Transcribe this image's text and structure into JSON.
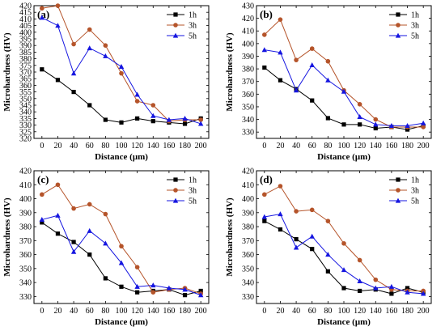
{
  "colors": {
    "1h": "#000000",
    "3h": "#b5542a",
    "5h": "#1616e0"
  },
  "chart_data": [
    {
      "type": "line",
      "panel_label": "(a)",
      "xlabel": "Distance (μm)",
      "ylabel": "Microhardness (HV)",
      "x": [
        0,
        20,
        40,
        60,
        80,
        100,
        120,
        140,
        160,
        180,
        200
      ],
      "xticks": [
        0,
        20,
        40,
        60,
        80,
        100,
        120,
        140,
        160,
        180,
        200
      ],
      "xlim": [
        -10,
        210
      ],
      "ylim": [
        320,
        420
      ],
      "yticks": [
        320,
        325,
        330,
        335,
        340,
        345,
        350,
        355,
        360,
        365,
        370,
        375,
        380,
        385,
        390,
        395,
        400,
        405,
        410,
        415,
        420
      ],
      "legend_position": "top-right",
      "series": [
        {
          "name": "1h",
          "marker": "square",
          "values": [
            372,
            364,
            355,
            345,
            334,
            332,
            335,
            333,
            332,
            331,
            335
          ]
        },
        {
          "name": "3h",
          "marker": "circle",
          "values": [
            418,
            420,
            391,
            402,
            390,
            369,
            348,
            345,
            333,
            334,
            334
          ]
        },
        {
          "name": "5h",
          "marker": "triangle",
          "values": [
            411,
            405,
            369,
            388,
            382,
            374,
            353,
            337,
            334,
            335,
            331
          ]
        }
      ]
    },
    {
      "type": "line",
      "panel_label": "(b)",
      "xlabel": "Distance (μm)",
      "ylabel": "Microhardness (HV)",
      "x": [
        0,
        20,
        40,
        60,
        80,
        100,
        120,
        140,
        160,
        180,
        200
      ],
      "xticks": [
        0,
        20,
        40,
        60,
        80,
        100,
        120,
        140,
        160,
        180,
        200
      ],
      "xlim": [
        -10,
        210
      ],
      "ylim": [
        325,
        430
      ],
      "yticks": [
        330,
        340,
        350,
        360,
        370,
        380,
        390,
        400,
        410,
        420,
        430
      ],
      "legend_position": "top-right",
      "series": [
        {
          "name": "1h",
          "marker": "square",
          "values": [
            381,
            371,
            364,
            355,
            341,
            336,
            336,
            333,
            334,
            332,
            335
          ]
        },
        {
          "name": "3h",
          "marker": "circle",
          "values": [
            407,
            419,
            387,
            396,
            386,
            363,
            352,
            340,
            334,
            334,
            334
          ]
        },
        {
          "name": "5h",
          "marker": "triangle",
          "values": [
            395,
            393,
            363,
            383,
            371,
            362,
            342,
            336,
            335,
            335,
            337
          ]
        }
      ]
    },
    {
      "type": "line",
      "panel_label": "(c)",
      "xlabel": "Distance (μm)",
      "ylabel": "Microhardness (HV)",
      "x": [
        0,
        20,
        40,
        60,
        80,
        100,
        120,
        140,
        160,
        180,
        200
      ],
      "xticks": [
        0,
        20,
        40,
        60,
        80,
        100,
        120,
        140,
        160,
        180,
        200
      ],
      "xlim": [
        -10,
        210
      ],
      "ylim": [
        325,
        420
      ],
      "yticks": [
        330,
        340,
        350,
        360,
        370,
        380,
        390,
        400,
        410,
        420
      ],
      "legend_position": "top-right",
      "series": [
        {
          "name": "1h",
          "marker": "square",
          "values": [
            383,
            375,
            369,
            360,
            343,
            337,
            333,
            334,
            335,
            331,
            334
          ]
        },
        {
          "name": "3h",
          "marker": "circle",
          "values": [
            403,
            410,
            393,
            396,
            389,
            366,
            351,
            333,
            335,
            336,
            332
          ]
        },
        {
          "name": "5h",
          "marker": "triangle",
          "values": [
            385,
            388,
            362,
            377,
            368,
            354,
            337,
            338,
            336,
            335,
            331
          ]
        }
      ]
    },
    {
      "type": "line",
      "panel_label": "(d)",
      "xlabel": "Distance (μm)",
      "ylabel": "Microhardness (HV)",
      "x": [
        0,
        20,
        40,
        60,
        80,
        100,
        120,
        140,
        160,
        180,
        200
      ],
      "xticks": [
        0,
        20,
        40,
        60,
        80,
        100,
        120,
        140,
        160,
        180,
        200
      ],
      "xlim": [
        -10,
        210
      ],
      "ylim": [
        325,
        420
      ],
      "yticks": [
        330,
        340,
        350,
        360,
        370,
        380,
        390,
        400,
        410,
        420
      ],
      "legend_position": "top-right",
      "series": [
        {
          "name": "1h",
          "marker": "square",
          "values": [
            384,
            378,
            371,
            364,
            348,
            336,
            334,
            335,
            332,
            336,
            333
          ]
        },
        {
          "name": "3h",
          "marker": "circle",
          "values": [
            403,
            409,
            391,
            392,
            384,
            368,
            356,
            342,
            335,
            334,
            334
          ]
        },
        {
          "name": "5h",
          "marker": "triangle",
          "values": [
            387,
            389,
            365,
            373,
            360,
            349,
            341,
            336,
            337,
            333,
            332
          ]
        }
      ]
    }
  ]
}
